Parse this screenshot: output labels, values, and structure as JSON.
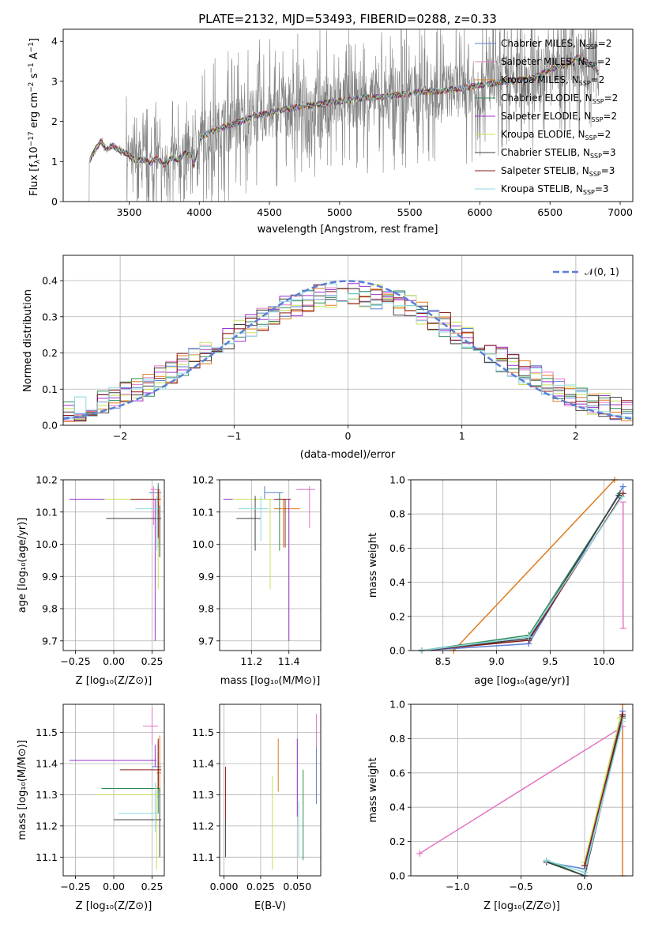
{
  "chart_data": [
    {
      "type": "line",
      "title": "PLATE=2132, MJD=53493, FIBERID=0288, z=0.33",
      "xlabel": "wavelength [Angstrom, rest frame]",
      "ylabel": "Flux [fλ 10⁻¹⁷ erg cm⁻² s⁻¹ A⁻¹]",
      "xlim": [
        3030,
        7090
      ],
      "ylim": [
        0,
        4.3
      ],
      "xticks": [
        3500,
        4000,
        4500,
        5000,
        5500,
        6000,
        6500,
        7000
      ],
      "yticks": [
        0,
        1,
        2,
        3,
        4
      ],
      "grid": false,
      "legend_position": "upper right",
      "series": [
        {
          "name": "Chabrier MILES, N_SSP=2",
          "color": "#5b7fd6"
        },
        {
          "name": "Salpeter MILES, N_SSP=2",
          "color": "#e377c2"
        },
        {
          "name": "Kroupa MILES, N_SSP=2",
          "color": "#e07b1f"
        },
        {
          "name": "Chabrier ELODIE, N_SSP=2",
          "color": "#2e8b57"
        },
        {
          "name": "Salpeter ELODIE, N_SSP=2",
          "color": "#9932cc"
        },
        {
          "name": "Kroupa ELODIE, N_SSP=2",
          "color": "#c8e05a"
        },
        {
          "name": "Chabrier STELIB, N_SSP=3",
          "color": "#404040"
        },
        {
          "name": "Salpeter STELIB, N_SSP=3",
          "color": "#8b1a1a"
        },
        {
          "name": "Kroupa STELIB, N_SSP=3",
          "color": "#8fd8e0"
        }
      ],
      "model_curve": {
        "x": [
          3220,
          3260,
          3300,
          3340,
          3380,
          3420,
          3460,
          3500,
          3550,
          3600,
          3650,
          3700,
          3750,
          3800,
          3850,
          3900,
          3950,
          4000,
          4100,
          4200,
          4300,
          4400,
          4500,
          4600,
          4700,
          4800,
          4900,
          5000,
          5100,
          5200,
          5300,
          5400,
          5500,
          5600,
          5700,
          5800,
          5900,
          6000,
          6100,
          6200,
          6300,
          6400,
          6500,
          6600,
          6700,
          6800,
          6850
        ],
        "y": [
          1.05,
          1.3,
          1.5,
          1.3,
          1.4,
          1.3,
          1.25,
          1.15,
          1.0,
          1.05,
          0.95,
          1.1,
          0.9,
          1.1,
          1.05,
          1.2,
          1.15,
          1.6,
          1.75,
          1.9,
          2.0,
          2.15,
          2.2,
          2.3,
          2.35,
          2.4,
          2.45,
          2.5,
          2.55,
          2.6,
          2.6,
          2.65,
          2.7,
          2.75,
          2.75,
          2.8,
          2.85,
          2.9,
          2.95,
          3.0,
          3.05,
          3.1,
          3.3,
          3.4,
          3.6,
          3.4,
          3.2
        ]
      },
      "data_range_x": [
        3210,
        6850
      ]
    },
    {
      "type": "histogram",
      "xlabel": "(data-model)/error",
      "ylabel": "Normed distribution",
      "xlim": [
        -2.5,
        2.5
      ],
      "ylim": [
        0,
        0.47
      ],
      "xticks": [
        -2,
        -1,
        0,
        1,
        2
      ],
      "yticks": [
        0.0,
        0.1,
        0.2,
        0.3,
        0.4
      ],
      "grid": true,
      "legend_position": "upper right",
      "reference_curve": {
        "name": "𝒩(0, 1)",
        "type": "gaussian",
        "mean": 0,
        "sigma": 1,
        "color": "#5b7fd6",
        "style": "dashed"
      }
    },
    {
      "type": "error_bars",
      "xlabel": "Z [log₁₀(Z/Z⊙)]",
      "ylabel": "age  [log₁₀(age/yr)]",
      "xlim": [
        -0.33,
        0.33
      ],
      "ylim": [
        9.67,
        10.2
      ],
      "xticks": [
        -0.25,
        0.0,
        0.25
      ],
      "yticks": [
        9.7,
        9.8,
        9.9,
        10.0,
        10.1,
        10.2
      ],
      "points": [
        {
          "color": "#5b7fd6",
          "x": 0.29,
          "xerr": [
            0.06,
            0.02
          ],
          "y": 10.16,
          "yerr": [
            0.17,
            0.02
          ]
        },
        {
          "color": "#e377c2",
          "x": 0.26,
          "xerr": [
            0.02,
            0.04
          ],
          "y": 10.17,
          "yerr": [
            0.11,
            0.01
          ]
        },
        {
          "color": "#e07b1f",
          "x": 0.3,
          "xerr": [
            0.03,
            0.01
          ],
          "y": 10.14,
          "yerr": [
            0.14,
            0.03
          ]
        },
        {
          "color": "#2e8b57",
          "x": 0.29,
          "xerr": [
            0.38,
            0.01
          ],
          "y": 10.14,
          "yerr": [
            0.05,
            0.05
          ]
        },
        {
          "color": "#9932cc",
          "x": 0.27,
          "xerr": [
            0.56,
            0.01
          ],
          "y": 10.14,
          "yerr": [
            0.44,
            0.0
          ]
        },
        {
          "color": "#c8e05a",
          "x": 0.29,
          "xerr": [
            0.35,
            0.01
          ],
          "y": 10.14,
          "yerr": [
            0.28,
            0.0
          ]
        },
        {
          "color": "#404040",
          "x": 0.3,
          "xerr": [
            0.35,
            0.01
          ],
          "y": 10.08,
          "yerr": [
            0.12,
            0.04
          ]
        },
        {
          "color": "#8b1a1a",
          "x": 0.29,
          "xerr": [
            0.18,
            0.01
          ],
          "y": 10.14,
          "yerr": [
            0.12,
            0.03
          ]
        },
        {
          "color": "#8fd8e0",
          "x": 0.28,
          "xerr": [
            0.14,
            0.01
          ],
          "y": 10.11,
          "yerr": [
            0.13,
            0.04
          ]
        }
      ]
    },
    {
      "type": "error_bars",
      "xlabel": "mass [log₁₀(M/M⊙)]",
      "ylabel": "",
      "xlim": [
        11.03,
        11.57
      ],
      "ylim": [
        9.67,
        10.2
      ],
      "xticks": [
        11.2,
        11.4
      ],
      "yticks": [
        9.7,
        9.8,
        9.9,
        10.0,
        10.1,
        10.2
      ],
      "points": [
        {
          "color": "#5b7fd6",
          "x": 11.27,
          "xerr": [
            0.0,
            0.1
          ],
          "y": 10.16,
          "yerr": [
            0.02,
            0.02
          ]
        },
        {
          "color": "#e377c2",
          "x": 11.51,
          "xerr": [
            0.07,
            0.03
          ],
          "y": 10.17,
          "yerr": [
            0.12,
            0.01
          ]
        },
        {
          "color": "#e07b1f",
          "x": 11.37,
          "xerr": [
            0.05,
            0.09
          ],
          "y": 10.11,
          "yerr": [
            0.12,
            0.03
          ]
        },
        {
          "color": "#2e8b57",
          "x": 11.35,
          "xerr": [
            0.27,
            0.02
          ],
          "y": 10.14,
          "yerr": [
            0.16,
            0.02
          ]
        },
        {
          "color": "#9932cc",
          "x": 11.4,
          "xerr": [
            0.35,
            0.01
          ],
          "y": 10.14,
          "yerr": [
            0.44,
            0.0
          ]
        },
        {
          "color": "#c8e05a",
          "x": 11.3,
          "xerr": [
            0.2,
            0.02
          ],
          "y": 10.14,
          "yerr": [
            0.28,
            0.0
          ]
        },
        {
          "color": "#404040",
          "x": 11.22,
          "xerr": [
            0.1,
            0.03
          ],
          "y": 10.08,
          "yerr": [
            0.1,
            0.07
          ]
        },
        {
          "color": "#8b1a1a",
          "x": 11.38,
          "xerr": [
            0.05,
            0.03
          ],
          "y": 10.14,
          "yerr": [
            0.15,
            0.0
          ]
        },
        {
          "color": "#8fd8e0",
          "x": 11.25,
          "xerr": [
            0.12,
            0.04
          ],
          "y": 10.11,
          "yerr": [
            0.1,
            0.04
          ]
        }
      ]
    },
    {
      "type": "line",
      "xlabel": "age  [log₁₀(age/yr)]",
      "ylabel": "mass weight",
      "xlim": [
        8.2,
        10.27
      ],
      "ylim": [
        0,
        1.0
      ],
      "xticks": [
        8.5,
        9.0,
        9.5,
        10.0
      ],
      "yticks": [
        0.0,
        0.2,
        0.4,
        0.6,
        0.8,
        1.0
      ],
      "grid": true,
      "series": [
        {
          "color": "#e07b1f",
          "x": [
            8.6,
            10.1
          ],
          "y": [
            0.0,
            1.0
          ]
        },
        {
          "color": "#5b7fd6",
          "x": [
            8.3,
            9.3,
            10.18
          ],
          "y": [
            0.0,
            0.04,
            0.96
          ]
        },
        {
          "color": "#2e8b57",
          "x": [
            8.3,
            9.3,
            10.15
          ],
          "y": [
            0.0,
            0.09,
            0.92
          ]
        },
        {
          "color": "#8b1a1a",
          "x": [
            8.3,
            9.3,
            10.18
          ],
          "y": [
            0.0,
            0.06,
            0.92
          ]
        },
        {
          "color": "#404040",
          "x": [
            8.3,
            9.3,
            10.14
          ],
          "y": [
            0.0,
            0.07,
            0.91
          ]
        },
        {
          "color": "#8fd8e0",
          "x": [
            8.3,
            9.3,
            10.17
          ],
          "y": [
            0.0,
            0.08,
            0.9
          ]
        }
      ],
      "errorbars": [
        {
          "color": "#e377c2",
          "x": 10.18,
          "y_low": 0.13,
          "y_high": 0.87
        }
      ]
    },
    {
      "type": "error_bars",
      "xlabel": "Z [log₁₀(Z/Z⊙)]",
      "ylabel": "mass [log₁₀(M/M⊙)]",
      "xlim": [
        -0.33,
        0.33
      ],
      "ylim": [
        11.04,
        11.59
      ],
      "xticks": [
        -0.25,
        0.0,
        0.25
      ],
      "yticks": [
        11.1,
        11.2,
        11.3,
        11.4,
        11.5
      ],
      "points": [
        {
          "color": "#5b7fd6",
          "x": 0.29,
          "xerr": [
            0.04,
            0.02
          ],
          "y": 11.39,
          "yerr": [
            0.1,
            0.08
          ]
        },
        {
          "color": "#e377c2",
          "x": 0.25,
          "xerr": [
            0.06,
            0.04
          ],
          "y": 11.52,
          "yerr": [
            0.06,
            0.06
          ]
        },
        {
          "color": "#e07b1f",
          "x": 0.3,
          "xerr": [
            0.02,
            0.01
          ],
          "y": 11.37,
          "yerr": [
            0.06,
            0.12
          ]
        },
        {
          "color": "#2e8b57",
          "x": 0.29,
          "xerr": [
            0.37,
            0.01
          ],
          "y": 11.32,
          "yerr": [
            0.08,
            0.06
          ]
        },
        {
          "color": "#9932cc",
          "x": 0.27,
          "xerr": [
            0.56,
            0.01
          ],
          "y": 11.41,
          "yerr": [
            0.02,
            0.05
          ]
        },
        {
          "color": "#c8e05a",
          "x": 0.28,
          "xerr": [
            0.4,
            0.02
          ],
          "y": 11.3,
          "yerr": [
            0.24,
            0.03
          ]
        },
        {
          "color": "#404040",
          "x": 0.3,
          "xerr": [
            0.3,
            0.01
          ],
          "y": 11.22,
          "yerr": [
            0.12,
            0.1
          ]
        },
        {
          "color": "#8b1a1a",
          "x": 0.29,
          "xerr": [
            0.25,
            0.02
          ],
          "y": 11.38,
          "yerr": [
            0.06,
            0.1
          ]
        },
        {
          "color": "#8fd8e0",
          "x": 0.27,
          "xerr": [
            0.24,
            0.02
          ],
          "y": 11.24,
          "yerr": [
            0.06,
            0.1
          ]
        }
      ]
    },
    {
      "type": "error_bars",
      "xlabel": "E(B-V)",
      "ylabel": "",
      "xlim": [
        -0.003,
        0.066
      ],
      "ylim": [
        11.04,
        11.59
      ],
      "xticks": [
        0.0,
        0.025,
        0.05
      ],
      "xtick_labels": [
        "0.000",
        "0.025",
        "0.050"
      ],
      "yticks": [
        11.1,
        11.2,
        11.3,
        11.4,
        11.5
      ],
      "points": [
        {
          "color": "#5b7fd6",
          "x": 0.063,
          "y_low": 11.27,
          "y_high": 11.46
        },
        {
          "color": "#e377c2",
          "x": 0.063,
          "y_low": 11.45,
          "y_high": 11.56
        },
        {
          "color": "#e07b1f",
          "x": 0.037,
          "y_low": 11.31,
          "y_high": 11.48
        },
        {
          "color": "#2e8b57",
          "x": 0.054,
          "y_low": 11.09,
          "y_high": 11.38
        },
        {
          "color": "#9932cc",
          "x": 0.05,
          "y_low": 11.23,
          "y_high": 11.48
        },
        {
          "color": "#c8e05a",
          "x": 0.033,
          "y_low": 11.06,
          "y_high": 11.36
        },
        {
          "color": "#404040",
          "x": 0.001,
          "y_low": 11.1,
          "y_high": 11.22
        },
        {
          "color": "#8b1a1a",
          "x": 0.001,
          "y_low": 11.22,
          "y_high": 11.39
        },
        {
          "color": "#8fd8e0",
          "x": 0.051,
          "y_low": 11.1,
          "y_high": 11.28
        }
      ]
    },
    {
      "type": "line",
      "xlabel": "Z [log₁₀(Z/Z⊙)]",
      "ylabel": "mass weight",
      "xlim": [
        -1.37,
        0.38
      ],
      "ylim": [
        0,
        1.0
      ],
      "xticks": [
        -1.0,
        -0.5,
        0.0
      ],
      "yticks": [
        0.0,
        0.2,
        0.4,
        0.6,
        0.8,
        1.0
      ],
      "grid": true,
      "series": [
        {
          "color": "#e377c2",
          "x": [
            -1.3,
            0.3
          ],
          "y": [
            0.13,
            0.87
          ]
        },
        {
          "color": "#5b7fd6",
          "x": [
            -0.3,
            0.0,
            0.3
          ],
          "y": [
            0.08,
            0.04,
            0.96
          ]
        },
        {
          "color": "#2e8b57",
          "x": [
            -0.3,
            0.0,
            0.3
          ],
          "y": [
            0.09,
            0.0,
            0.92
          ]
        },
        {
          "color": "#404040",
          "x": [
            -0.3,
            0.0,
            0.3
          ],
          "y": [
            0.08,
            0.0,
            0.93
          ]
        },
        {
          "color": "#c8e05a",
          "x": [
            0.0,
            0.28
          ],
          "y": [
            0.08,
            0.92
          ]
        },
        {
          "color": "#8fd8e0",
          "x": [
            -0.3,
            0.0,
            0.3
          ],
          "y": [
            0.09,
            0.02,
            0.9
          ]
        },
        {
          "color": "#8b1a1a",
          "x": [
            0.0,
            0.3
          ],
          "y": [
            0.06,
            0.94
          ]
        }
      ],
      "errorbars": [
        {
          "color": "#e07b1f",
          "x": 0.3,
          "y_low": 0.0,
          "y_high": 1.0
        }
      ]
    }
  ]
}
